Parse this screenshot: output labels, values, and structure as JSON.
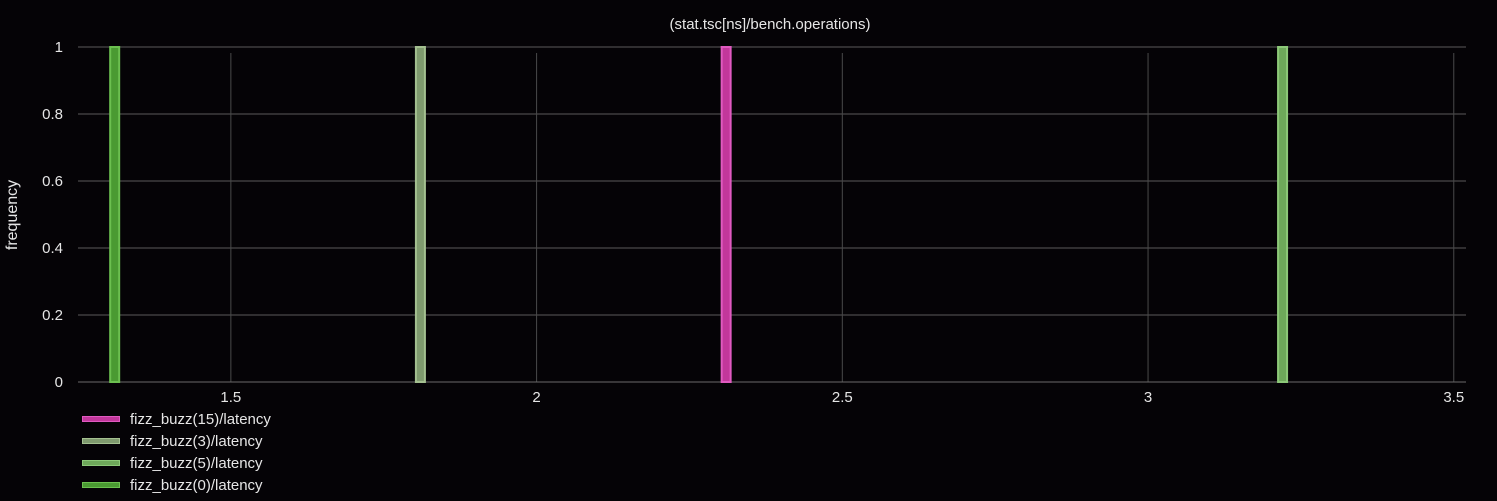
{
  "chart_data": {
    "type": "bar",
    "title": "(stat.tsc[ns]/bench.operations)",
    "xlabel": "",
    "ylabel": "frequency",
    "xlim": [
      1.25,
      3.52
    ],
    "ylim": [
      0,
      1
    ],
    "x_ticks": [
      "1.5",
      "2",
      "2.5",
      "3",
      "3.5"
    ],
    "y_ticks": [
      "0",
      "0.2",
      "0.4",
      "0.6",
      "0.8",
      "1"
    ],
    "grid": true,
    "legend_position": "bottom-left",
    "series": [
      {
        "name": "fizz_buzz(15)/latency",
        "color": "#c2379b",
        "border": "#e05ac0",
        "x": [
          2.31
        ],
        "values": [
          1
        ]
      },
      {
        "name": "fizz_buzz(3)/latency",
        "color": "#7f9a6e",
        "border": "#a4c090",
        "x": [
          1.81
        ],
        "values": [
          1
        ]
      },
      {
        "name": "fizz_buzz(5)/latency",
        "color": "#6ea85a",
        "border": "#8cc878",
        "x": [
          3.22
        ],
        "values": [
          1
        ]
      },
      {
        "name": "fizz_buzz(0)/latency",
        "color": "#4a9a32",
        "border": "#6cc050",
        "x": [
          1.31
        ],
        "values": [
          1
        ]
      }
    ]
  }
}
